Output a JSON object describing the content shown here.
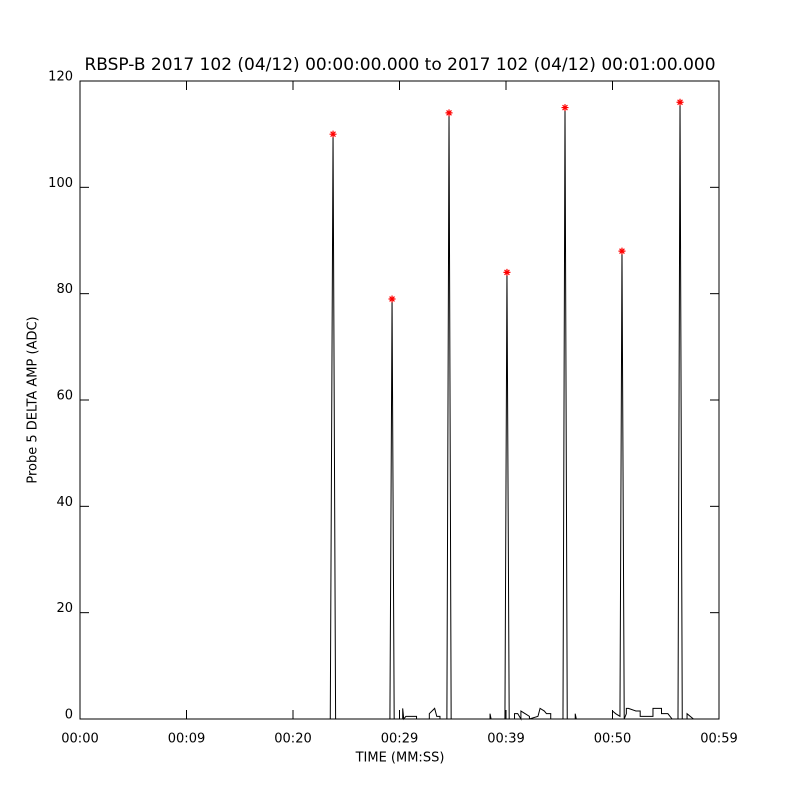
{
  "chart_data": {
    "type": "line",
    "title": "RBSP-B 2017 102 (04/12) 00:00:00.000 to 2017 102 (04/12) 00:01:00.000",
    "xlabel": "TIME (MM:SS)",
    "ylabel": "Probe 5 DELTA AMP (ADC)",
    "xlim": [
      0,
      60
    ],
    "xticks": [
      {
        "value": 0,
        "label": "00:00"
      },
      {
        "value": 10,
        "label": "00:09"
      },
      {
        "value": 20,
        "label": "00:20"
      },
      {
        "value": 30,
        "label": "00:29"
      },
      {
        "value": 40,
        "label": "00:39"
      },
      {
        "value": 50,
        "label": "00:50"
      },
      {
        "value": 60,
        "label": "00:59"
      }
    ],
    "ylim": [
      0,
      120
    ],
    "yticks": [
      0,
      20,
      40,
      60,
      80,
      100,
      120
    ],
    "series": [
      {
        "color": "#000000",
        "x": [
          0,
          23.5,
          23.76,
          24.0,
          29.1,
          29.3,
          29.5,
          30.3,
          30.3,
          30.4,
          30.6,
          31.6,
          31.6,
          32.8,
          32.8,
          33.3,
          33.5,
          33.8,
          33.8,
          34.45,
          34.65,
          34.85,
          38.5,
          38.5,
          38.6,
          39.9,
          40.09,
          40.3,
          40.8,
          40.8,
          41.1,
          41.4,
          41.4,
          41.8,
          42.2,
          42.2,
          43.0,
          43.2,
          43.6,
          43.8,
          44.2,
          44.2,
          45.35,
          45.54,
          45.75,
          46.5,
          46.5,
          46.6,
          50.0,
          50.0,
          50.3,
          50.7,
          50.89,
          51.1,
          51.3,
          51.3,
          51.5,
          52.2,
          52.6,
          52.6,
          53.8,
          53.8,
          54.6,
          54.6,
          55.2,
          55.6,
          56.15,
          56.34,
          56.55,
          57.0,
          57.0,
          57.6
        ],
        "values": [
          0,
          0,
          110,
          0,
          0,
          79,
          0,
          0,
          2,
          0,
          0.5,
          0.5,
          0,
          0,
          1,
          2,
          0.5,
          0.5,
          0,
          0,
          114,
          0,
          0,
          1,
          0,
          0,
          84,
          0,
          0,
          1,
          1,
          0,
          1.5,
          1,
          0.5,
          0,
          0.5,
          2,
          1.5,
          1,
          1,
          0,
          0,
          115,
          0,
          0,
          1,
          0,
          0,
          1.5,
          1,
          0.5,
          88,
          0,
          1,
          2,
          2,
          1.5,
          1.5,
          0.5,
          0.5,
          2,
          2,
          1,
          1,
          0,
          0,
          116,
          0,
          0,
          1,
          0
        ]
      },
      {
        "color": "#ff0000",
        "marker": "asterisk",
        "x": [
          23.76,
          29.3,
          34.65,
          40.09,
          45.54,
          50.89,
          56.34
        ],
        "values": [
          110,
          79,
          114,
          84,
          115,
          88,
          116
        ]
      }
    ]
  }
}
